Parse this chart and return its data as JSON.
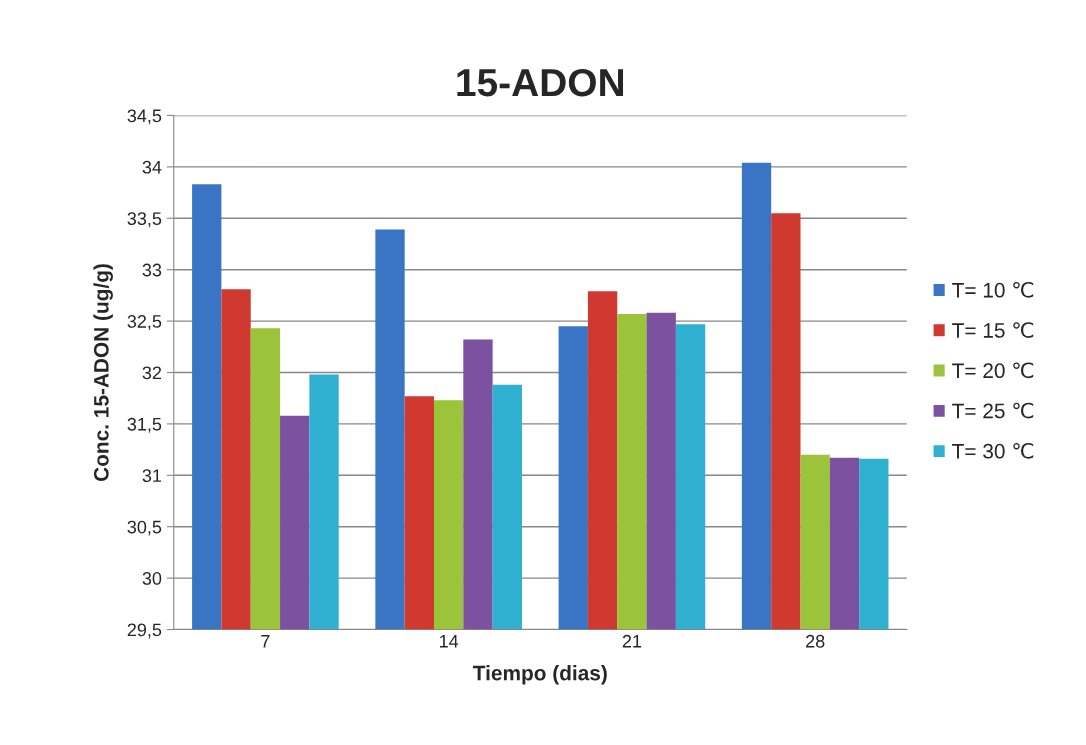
{
  "chart_data": {
    "type": "bar",
    "title": "15-ADON",
    "xlabel": "Tiempo (dias)",
    "ylabel": "Conc. 15-ADON (ug/g)",
    "categories": [
      "7",
      "14",
      "21",
      "28"
    ],
    "series": [
      {
        "name": "T= 10 ℃",
        "color": "#3a74c4",
        "values": [
          33.83,
          33.39,
          32.45,
          34.04
        ]
      },
      {
        "name": "T= 15 ℃",
        "color": "#d0392f",
        "values": [
          32.81,
          31.77,
          32.79,
          33.55
        ]
      },
      {
        "name": "T= 20 ℃",
        "color": "#9cc43a",
        "values": [
          32.43,
          31.73,
          32.57,
          31.2
        ]
      },
      {
        "name": "T= 25 ℃",
        "color": "#7b51a0",
        "values": [
          31.58,
          32.32,
          32.58,
          31.17
        ]
      },
      {
        "name": "T= 30 ℃",
        "color": "#2fb0d0",
        "values": [
          31.98,
          31.88,
          32.47,
          31.16
        ]
      }
    ],
    "ylim": [
      29.5,
      34.5
    ],
    "yticks": [
      {
        "value": 29.5,
        "label": "29,5"
      },
      {
        "value": 30,
        "label": "30"
      },
      {
        "value": 30.5,
        "label": "30,5"
      },
      {
        "value": 31,
        "label": "31"
      },
      {
        "value": 31.5,
        "label": "31,5"
      },
      {
        "value": 32,
        "label": "32"
      },
      {
        "value": 32.5,
        "label": "32,5"
      },
      {
        "value": 33,
        "label": "33"
      },
      {
        "value": 33.5,
        "label": "33,5"
      },
      {
        "value": 34,
        "label": "34"
      },
      {
        "value": 34.5,
        "label": "34,5"
      }
    ],
    "grid": "y",
    "legend": "right"
  }
}
